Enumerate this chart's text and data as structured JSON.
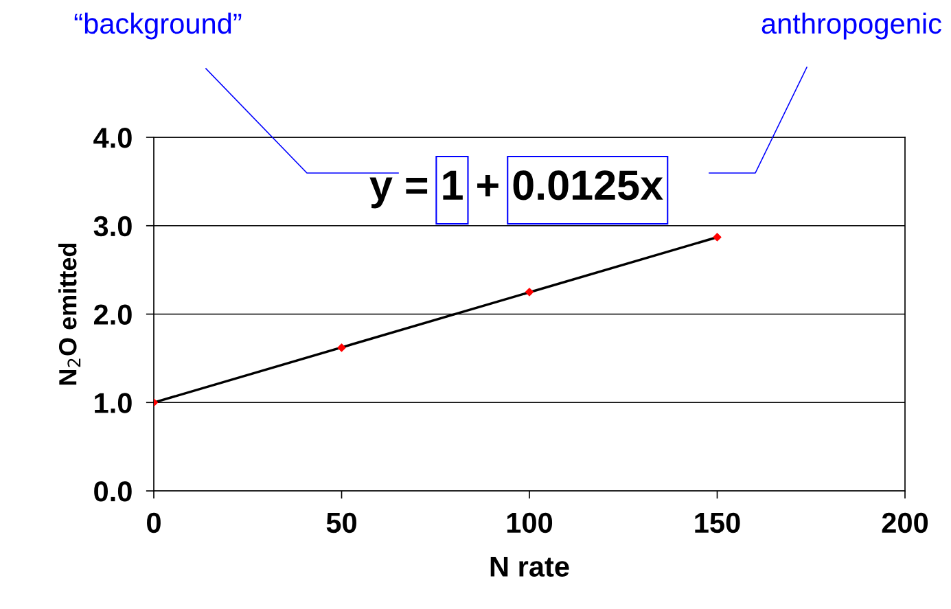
{
  "chart_data": {
    "type": "scatter",
    "xlabel": "N rate",
    "ylabel": "N$_{2}$O emitted",
    "annotations": [
      "“background”",
      "anthropogenic",
      "y = 1 + 0.0125x"
    ],
    "x": [
      0,
      50,
      100,
      150
    ],
    "series": [
      {
        "type": "line",
        "color": "#000000",
        "x": [
          0,
          150
        ],
        "values": [
          1.0,
          2.87
        ],
        "marker": "none"
      },
      {
        "color": "#ff0000",
        "values": [
          1.0,
          1.62,
          2.25,
          2.87
        ],
        "marker": "diamond"
      }
    ],
    "xlim": [
      0,
      200
    ],
    "ylim": [
      0,
      4
    ],
    "xticks": [
      0,
      50,
      100,
      150,
      200
    ],
    "yticks": [
      {
        "value": 0,
        "label": "0.0"
      },
      {
        "value": 1,
        "label": "1.0"
      },
      {
        "value": 2,
        "label": "2.0"
      },
      {
        "value": 3,
        "label": "3.0"
      },
      {
        "value": 4,
        "label": "4.0"
      }
    ],
    "grid": "y",
    "legend": false
  }
}
